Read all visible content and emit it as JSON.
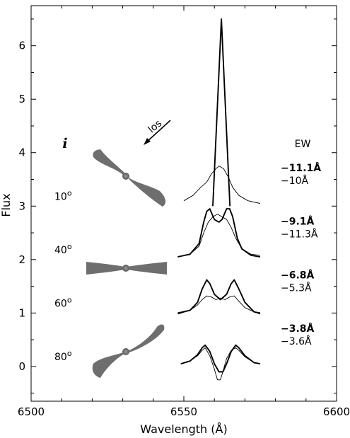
{
  "chart_data": {
    "type": "line",
    "title": "",
    "xlabel": "Wavelength (Å)",
    "ylabel": "Flux",
    "xlim": [
      6500,
      6600
    ],
    "ylim": [
      -0.65,
      6.75
    ],
    "xticks": [
      "6500",
      "6550",
      "6600"
    ],
    "yticks": [
      "0",
      "1",
      "2",
      "3",
      "4",
      "5",
      "6"
    ],
    "grid": false,
    "annotations": {
      "inclination_symbol": "i",
      "los_label": "los",
      "ew_header": "EW"
    },
    "panels": [
      {
        "inclination": "10",
        "offset": 3.0,
        "ew_bold": "−11.1Å",
        "ew_thin": "−10Å",
        "series": [
          {
            "style": "thick",
            "x": [
              6559.5,
              6562.3,
              6565.1
            ],
            "y": [
              3.0,
              6.5,
              3.0
            ]
          },
          {
            "style": "thin",
            "x": [
              6550,
              6553,
              6555.5,
              6557.5,
              6559,
              6560.5,
              6561.5,
              6563,
              6564.5,
              6566,
              6568,
              6571,
              6575
            ],
            "y": [
              3.1,
              3.2,
              3.35,
              3.45,
              3.6,
              3.7,
              3.75,
              3.7,
              3.55,
              3.35,
              3.2,
              3.1,
              3.05
            ]
          }
        ]
      },
      {
        "inclination": "40",
        "offset": 2.0,
        "ew_bold": "−9.1Å",
        "ew_thin": "−11.3Å",
        "series": [
          {
            "style": "thick",
            "x": [
              6548,
              6552,
              6555,
              6556.5,
              6557.5,
              6558.5,
              6560,
              6561.5,
              6562.5,
              6564,
              6565,
              6566,
              6567.5,
              6569,
              6572,
              6575
            ],
            "y": [
              2.05,
              2.1,
              2.3,
              2.7,
              2.9,
              2.95,
              2.75,
              2.7,
              2.75,
              2.95,
              2.95,
              2.8,
              2.4,
              2.2,
              2.08,
              2.05
            ]
          },
          {
            "style": "thin",
            "x": [
              6548,
              6552,
              6555,
              6556.5,
              6558,
              6559.5,
              6561,
              6562.5,
              6564,
              6565.5,
              6567,
              6569,
              6572,
              6575
            ],
            "y": [
              2.05,
              2.1,
              2.25,
              2.5,
              2.7,
              2.8,
              2.85,
              2.8,
              2.75,
              2.6,
              2.4,
              2.2,
              2.1,
              2.08
            ]
          }
        ]
      },
      {
        "inclination": "60",
        "offset": 1.0,
        "ew_bold": "−6.8Å",
        "ew_thin": "−5.3Å",
        "series": [
          {
            "style": "thick",
            "x": [
              6548,
              6552,
              6554.5,
              6556,
              6557.5,
              6558.5,
              6560,
              6562,
              6564,
              6565.5,
              6566.5,
              6568,
              6570,
              6573,
              6575
            ],
            "y": [
              1.0,
              1.05,
              1.2,
              1.45,
              1.62,
              1.55,
              1.35,
              1.25,
              1.35,
              1.55,
              1.62,
              1.45,
              1.2,
              1.02,
              1.0
            ]
          },
          {
            "style": "thin",
            "x": [
              6548,
              6552,
              6554.5,
              6556,
              6557.5,
              6559,
              6560.5,
              6562,
              6563.5,
              6565,
              6566.5,
              6568,
              6570,
              6573,
              6575
            ],
            "y": [
              0.98,
              1.05,
              1.15,
              1.25,
              1.32,
              1.3,
              1.25,
              1.28,
              1.25,
              1.3,
              1.32,
              1.22,
              1.1,
              1.02,
              0.98
            ]
          }
        ]
      },
      {
        "inclination": "80",
        "offset": 0.0,
        "ew_bold": "−3.8Å",
        "ew_thin": "−3.6Å",
        "series": [
          {
            "style": "thick",
            "x": [
              6549,
              6552,
              6554.5,
              6556,
              6557,
              6558.5,
              6560,
              6561.5,
              6562.8,
              6564,
              6565.5,
              6567,
              6568,
              6570,
              6573,
              6575
            ],
            "y": [
              0.05,
              0.1,
              0.22,
              0.35,
              0.4,
              0.28,
              0.05,
              -0.1,
              -0.1,
              0.05,
              0.28,
              0.4,
              0.35,
              0.2,
              0.07,
              0.05
            ]
          },
          {
            "style": "thin",
            "x": [
              6549,
              6552,
              6554.5,
              6556,
              6557,
              6558.5,
              6560,
              6561,
              6562,
              6563,
              6564,
              6565.5,
              6567,
              6568,
              6570,
              6573,
              6575
            ],
            "y": [
              0.05,
              0.1,
              0.2,
              0.3,
              0.35,
              0.2,
              -0.05,
              -0.25,
              -0.25,
              -0.05,
              0.15,
              0.3,
              0.35,
              0.3,
              0.18,
              0.07,
              0.05
            ]
          }
        ]
      }
    ]
  }
}
